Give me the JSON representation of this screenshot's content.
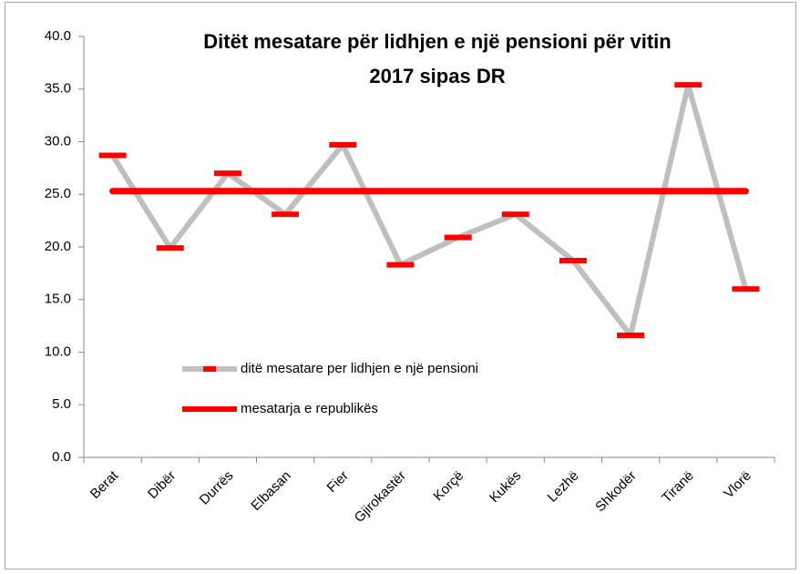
{
  "chart_data": {
    "type": "line",
    "title": [
      "Ditët mesatare për lidhjen e një pensioni për vitin",
      "2017 sipas DR"
    ],
    "categories": [
      "Berat",
      "Dibër",
      "Durrës",
      "Elbasan",
      "Fier",
      "Gjirokastër",
      "Korçë",
      "Kukës",
      "Lezhë",
      "Shkodër",
      "Tiranë",
      "Vlorë"
    ],
    "series": [
      {
        "name": "ditë mesatare per lidhjen e një pensioni",
        "color": "#bfbfbf",
        "marker_color": "#ff0000",
        "values": [
          28.7,
          19.9,
          27.0,
          23.1,
          29.7,
          18.3,
          20.9,
          23.1,
          18.7,
          11.6,
          35.4,
          16.0
        ]
      },
      {
        "name": "mesatarja e republikës",
        "color": "#ff0000",
        "values": [
          25.3,
          25.3,
          25.3,
          25.3,
          25.3,
          25.3,
          25.3,
          25.3,
          25.3,
          25.3,
          25.3,
          25.3
        ]
      }
    ],
    "ylim": [
      0,
      40
    ],
    "yticks": [
      {
        "value": 0,
        "label": "0.0"
      },
      {
        "value": 5,
        "label": "5.0"
      },
      {
        "value": 10,
        "label": "10.0"
      },
      {
        "value": 15,
        "label": "15.0"
      },
      {
        "value": 20,
        "label": "20.0"
      },
      {
        "value": 25,
        "label": "25.0"
      },
      {
        "value": 30,
        "label": "30.0"
      },
      {
        "value": 35,
        "label": "35.0"
      },
      {
        "value": 40,
        "label": "40.0"
      }
    ],
    "grid": false,
    "legend": "lower left"
  }
}
